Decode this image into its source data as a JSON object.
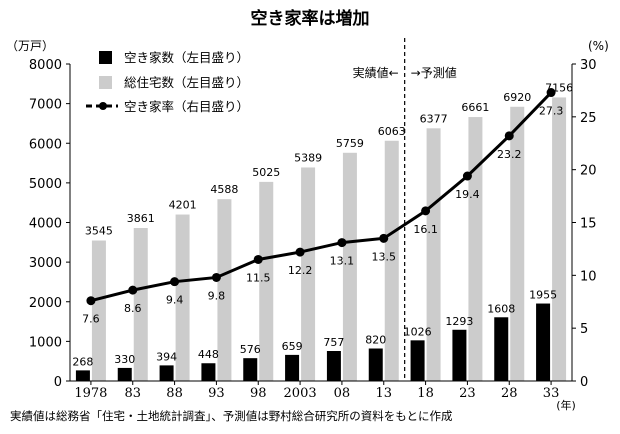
{
  "chart_data": {
    "type": "bar",
    "title": "空き家率は増加",
    "left_axis_unit": "（万戸）",
    "right_axis_unit": "(%)",
    "x_unit": "(年)",
    "categories": [
      "1978",
      "83",
      "88",
      "93",
      "98",
      "2003",
      "08",
      "13",
      "18",
      "23",
      "28",
      "33"
    ],
    "left_ylim": [
      0,
      8000
    ],
    "left_ticks": [
      0,
      1000,
      2000,
      3000,
      4000,
      5000,
      6000,
      7000,
      8000
    ],
    "right_ylim": [
      0,
      30
    ],
    "right_ticks": [
      0,
      5,
      10,
      15,
      20,
      25,
      30
    ],
    "series": [
      {
        "name": "空き家数（左目盛り）",
        "type": "bar",
        "axis": "left",
        "color": "#000000",
        "values": [
          268,
          330,
          394,
          448,
          576,
          659,
          757,
          820,
          1026,
          1293,
          1608,
          1955
        ]
      },
      {
        "name": "総住宅数（左目盛り）",
        "type": "bar",
        "axis": "left",
        "color": "#cccccc",
        "values": [
          3545,
          3861,
          4201,
          4588,
          5025,
          5389,
          5759,
          6063,
          6377,
          6661,
          6920,
          7156
        ]
      },
      {
        "name": "空き家率（右目盛り）",
        "type": "line",
        "axis": "right",
        "color": "#000000",
        "values": [
          7.6,
          8.6,
          9.4,
          9.8,
          11.5,
          12.2,
          13.1,
          13.5,
          16.1,
          19.4,
          23.2,
          27.3
        ]
      }
    ],
    "divider_after_index": 7,
    "region_labels": {
      "actual": "実績値←",
      "forecast": "→予測値"
    },
    "legend_position": "top-left",
    "grid": false
  },
  "source_note": "実績値は総務省「住宅・土地統計調査」、予測値は野村総合研究所の資料をもとに作成"
}
